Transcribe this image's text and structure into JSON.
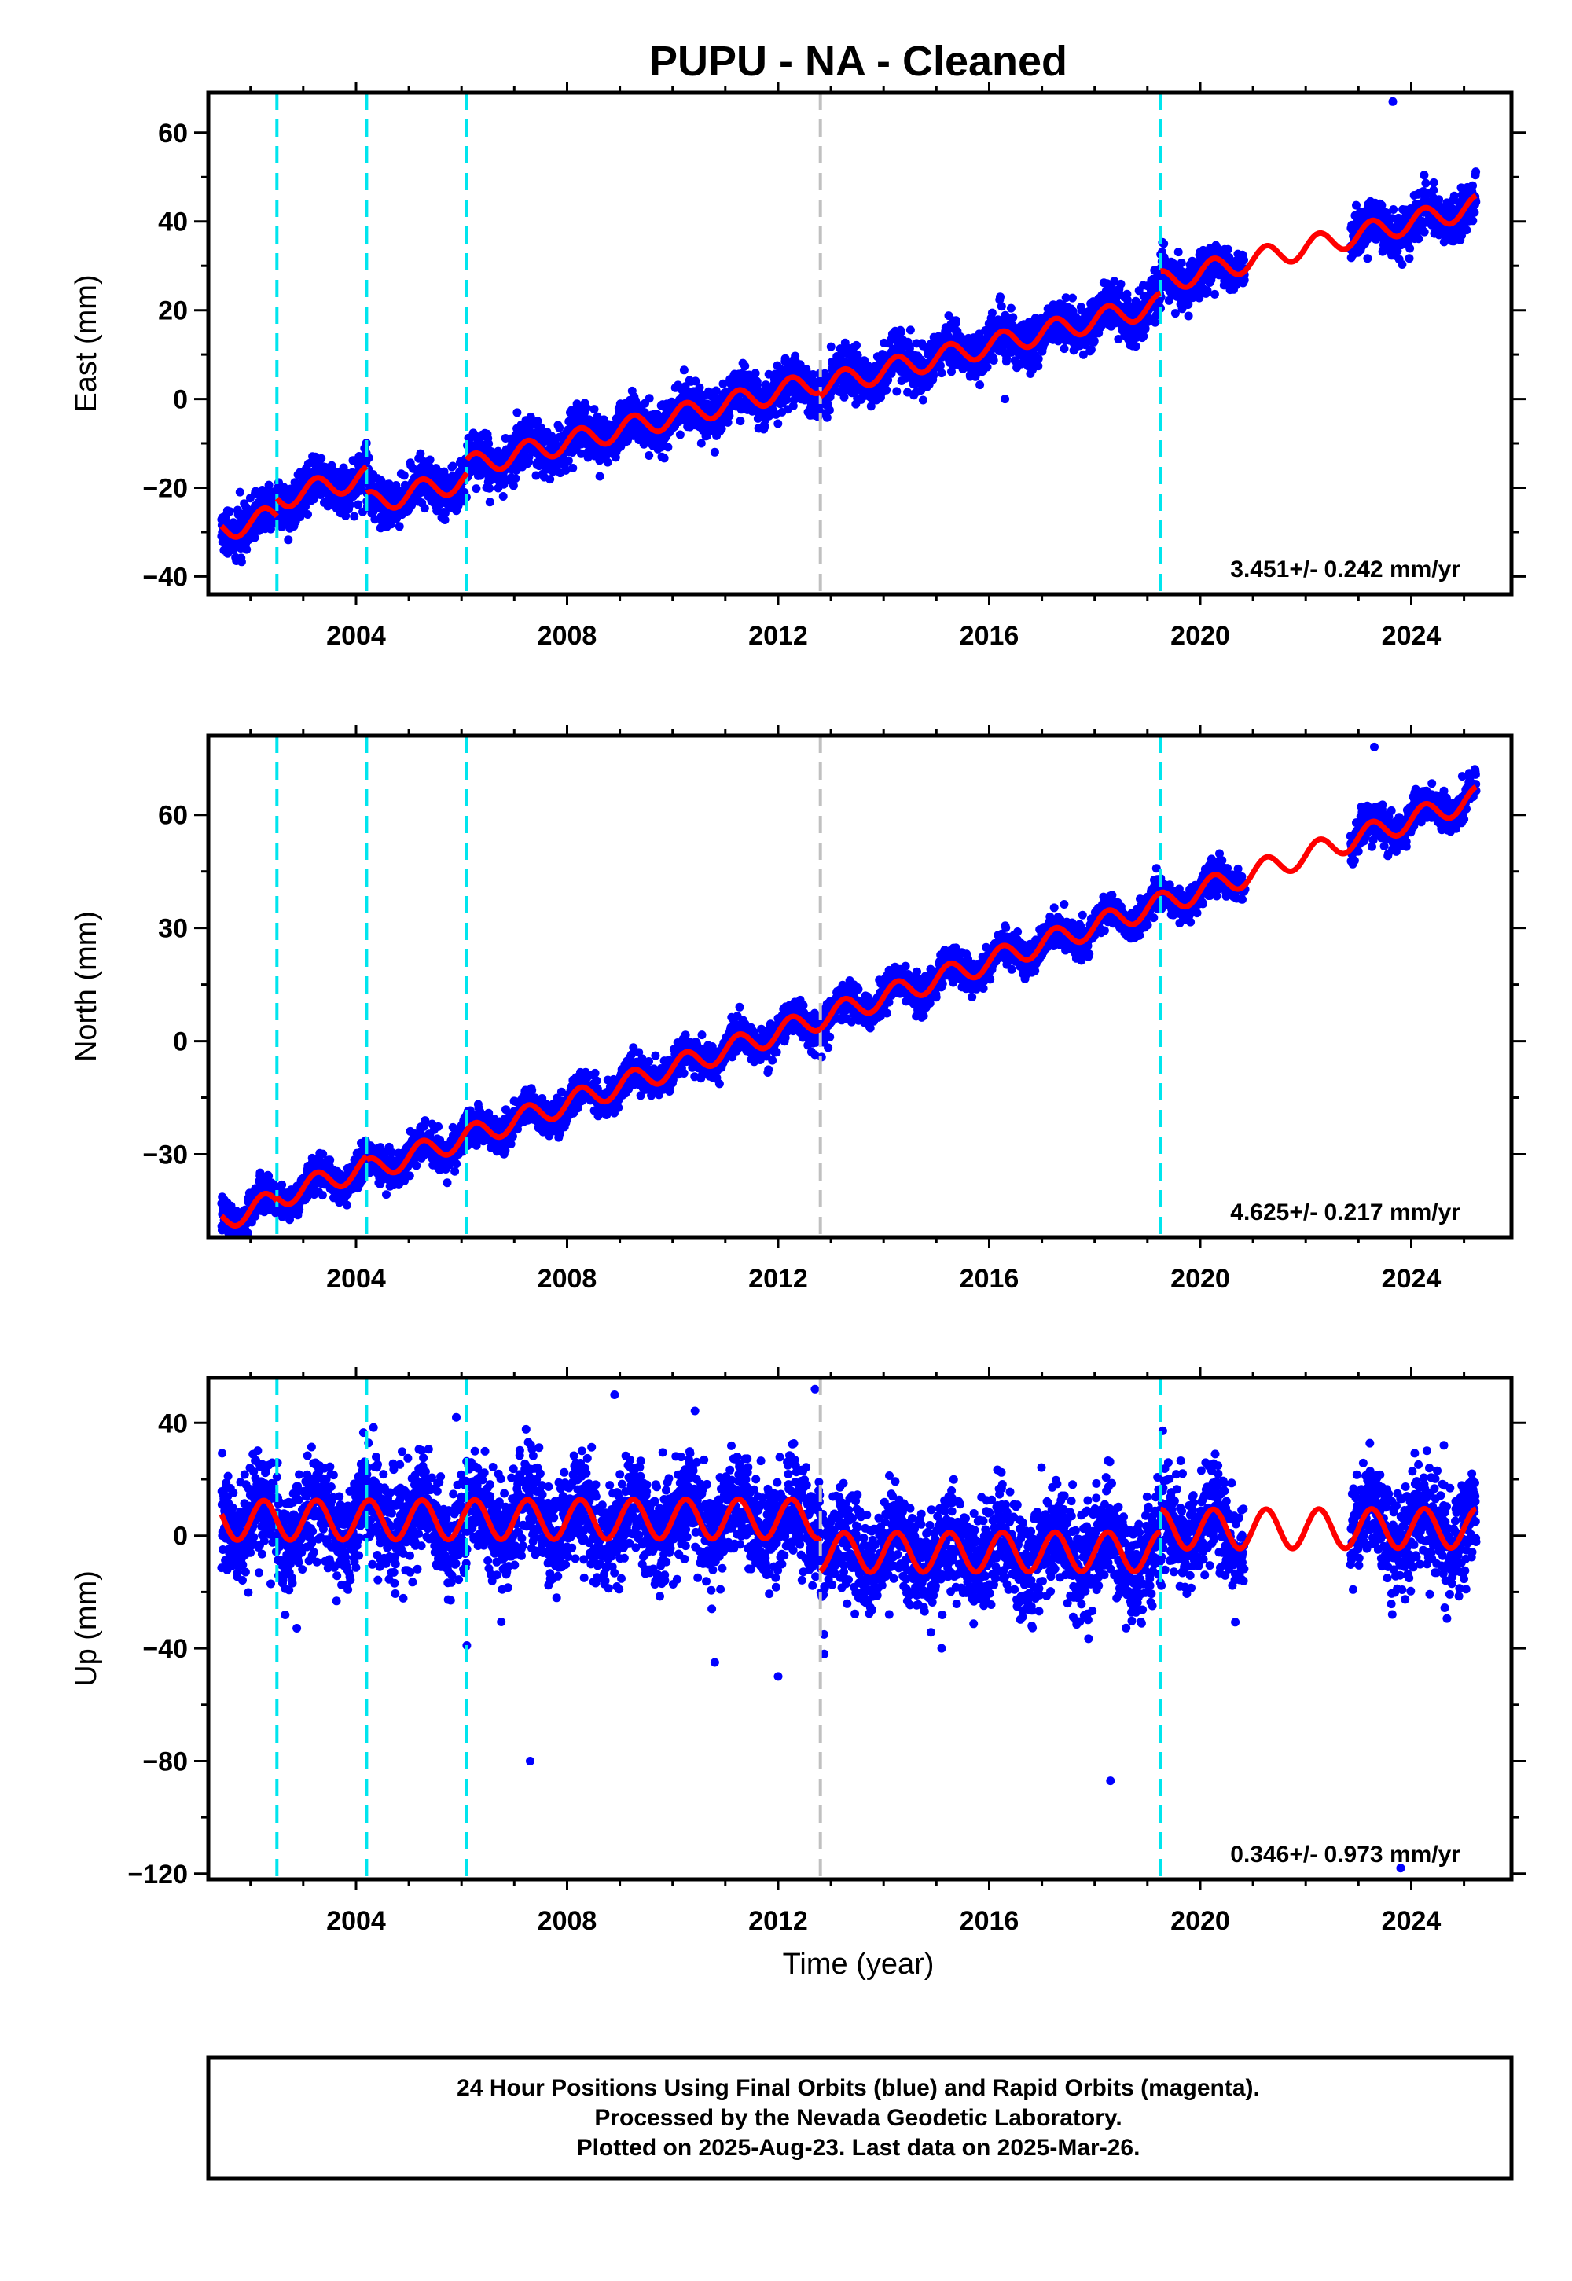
{
  "chart_data": {
    "type": "scatter",
    "title": "PUPU  - NA - Cleaned",
    "xlabel": "Time (year)",
    "xlim": [
      2001.2,
      2025.9
    ],
    "xticks": [
      2004,
      2008,
      2012,
      2016,
      2020,
      2024
    ],
    "xtick_labels": [
      "2004",
      "2008",
      "2012",
      "2016",
      "2020",
      "2024"
    ],
    "grid": false,
    "colors": {
      "data": "#0000ff",
      "model": "#ff0000",
      "equipment_change": "#00e5ee",
      "other_offset": "#c0c0c0",
      "frame": "#000000"
    },
    "offset_lines": [
      {
        "x": 2002.5,
        "kind": "equipment_change"
      },
      {
        "x": 2004.2,
        "kind": "equipment_change"
      },
      {
        "x": 2006.1,
        "kind": "equipment_change"
      },
      {
        "x": 2012.8,
        "kind": "other_offset"
      },
      {
        "x": 2019.25,
        "kind": "equipment_change"
      }
    ],
    "data_gaps": [
      [
        2020.85,
        2022.85
      ]
    ],
    "panels": [
      {
        "name": "east",
        "ylabel": "East (mm)",
        "ylim": [
          -44,
          69
        ],
        "yticks": [
          -40,
          -20,
          0,
          20,
          40,
          60
        ],
        "ytick_labels": [
          "−40",
          "−20",
          "0",
          "20",
          "40",
          "60"
        ],
        "rate_label": "3.451+/- 0.242 mm/yr",
        "model": {
          "breaks": [
            2002.5,
            2004.2,
            2006.1,
            2012.8,
            2019.25
          ],
          "segment_offsets": [
            0,
            4,
            -2,
            1,
            0,
            5
          ],
          "intercept_at_2013": 3.5,
          "rate": 2.85,
          "annual_amplitude": 2.5
        },
        "scatter_sigma": 2.6,
        "outliers": [
          [
            2023.65,
            67
          ],
          [
            2001.8,
            -21
          ],
          [
            2016.3,
            0
          ],
          [
            2010.8,
            -12
          ]
        ]
      },
      {
        "name": "north",
        "ylabel": "North (mm)",
        "ylim": [
          -52,
          81
        ],
        "yticks": [
          -30,
          0,
          30,
          60
        ],
        "ytick_labels": [
          "−30",
          "0",
          "30",
          "60"
        ],
        "rate_label": "4.625+/- 0.217 mm/yr",
        "model": {
          "breaks": [
            2002.5,
            2004.2,
            2006.1,
            2012.8,
            2019.25
          ],
          "segment_offsets": [
            0,
            1,
            0,
            0,
            0,
            0
          ],
          "intercept_at_2013": 7,
          "rate": 4.7,
          "annual_amplitude": 3.0
        },
        "scatter_sigma": 2.2,
        "outliers": [
          [
            2001.9,
            -50
          ],
          [
            2023.3,
            78
          ]
        ]
      },
      {
        "name": "up",
        "ylabel": "Up (mm)",
        "ylim": [
          -122,
          56
        ],
        "yticks": [
          -120,
          -80,
          -40,
          0,
          40
        ],
        "ytick_labels": [
          "−120",
          "−80",
          "−40",
          "0",
          "40"
        ],
        "rate_label": "0.346+/- 0.973 mm/yr",
        "model": {
          "breaks": [
            2012.8,
            2019.25
          ],
          "segment_offsets": [
            0,
            -12,
            -4
          ],
          "intercept_at_2013": 6,
          "rate": 0.05,
          "annual_amplitude": 7.0
        },
        "scatter_sigma": 9.0,
        "outliers": [
          [
            2007.3,
            -80
          ],
          [
            2018.3,
            -87
          ],
          [
            2006.1,
            -39
          ],
          [
            2010.8,
            -45
          ],
          [
            2012.0,
            -50
          ],
          [
            2023.8,
            -118
          ],
          [
            2015.1,
            -40
          ],
          [
            2012.7,
            52
          ],
          [
            2008.9,
            50
          ],
          [
            2005.9,
            42
          ]
        ]
      }
    ]
  },
  "footer": {
    "line1": "24 Hour Positions Using Final Orbits (blue) and Rapid Orbits (magenta).",
    "line2": "Processed by the Nevada Geodetic Laboratory.",
    "line3": "Plotted on 2025-Aug-23. Last data on 2025-Mar-26."
  }
}
